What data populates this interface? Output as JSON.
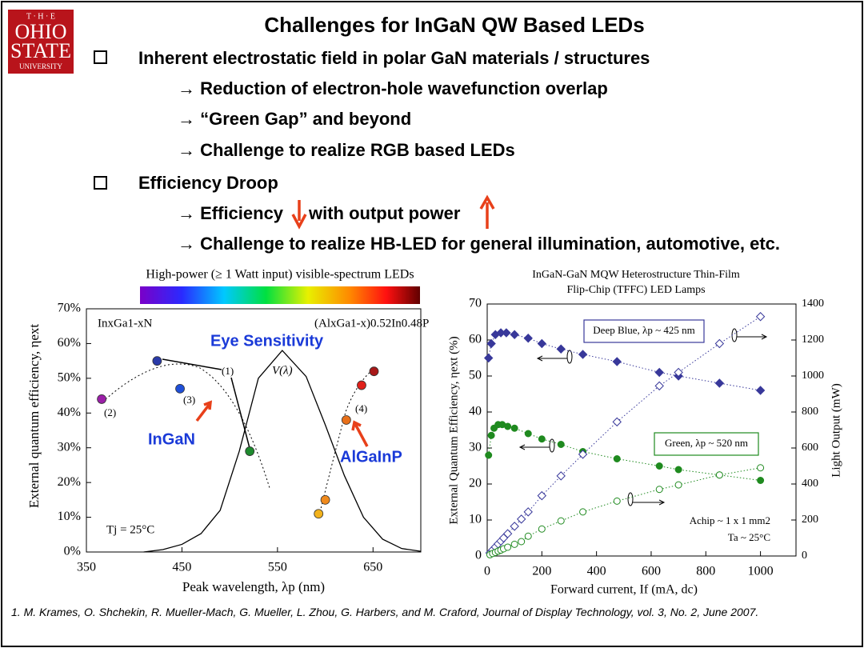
{
  "slide": {
    "logo": [
      "T · H · E",
      "OHIO",
      "STATE",
      "UNIVERSITY"
    ],
    "title": "Challenges for InGaN QW Based LEDs",
    "bullets": [
      {
        "text": "Inherent electrostatic field in polar GaN materials / structures",
        "items": [
          "→ Reduction of electron-hole wavefunction overlap",
          "→ “Green Gap” and beyond",
          "→ Challenge to realize RGB based LEDs"
        ]
      },
      {
        "text": "Efficiency Droop",
        "items": [
          "→ Efficiency",
          "with output power",
          "→ Challenge to realize HB-LED for general illumination, automotive, etc."
        ]
      }
    ],
    "reference": "1. M. Krames, O. Shchekin, R. Mueller-Mach, G. Mueller, L. Zhou, G. Harbers, and M. Craford, Journal of Display Technology, vol. 3, No. 2, June 2007."
  },
  "chart_data": [
    {
      "type": "scatter",
      "title": "High-power (≥ 1 Watt input) visible-spectrum LEDs",
      "x_label": "Peak wavelength, λp (nm)",
      "y_label": "External quantum efficiency, ηext",
      "x": [
        366,
        424,
        448,
        521,
        593,
        600,
        622,
        638,
        651
      ],
      "values": [
        44,
        55,
        47,
        29,
        11,
        15,
        38,
        48,
        52
      ],
      "colors": [
        "#9b1fa8",
        "#2a3aa8",
        "#1f4fd8",
        "#1e8a2e",
        "#f2b21c",
        "#f08a1c",
        "#e8701a",
        "#e0201a",
        "#a81818"
      ],
      "series": [
        {
          "name": "V(λ)",
          "color": "#000000",
          "x": [
            410,
            430,
            450,
            470,
            490,
            510,
            530,
            555,
            580,
            600,
            620,
            640,
            660,
            680,
            700
          ],
          "values": [
            0,
            0.7,
            2.2,
            5.3,
            12,
            29,
            50,
            58,
            50.5,
            36.6,
            22,
            10,
            3.7,
            1,
            0.2
          ]
        }
      ],
      "annotations": [
        "InxGa1-xN",
        "(AlxGa1-x)0.52In0.48P",
        "Eye Sensitivity",
        "InGaN",
        "AlGaInP",
        "(1)",
        "(2)",
        "(3)",
        "(4)",
        "Tj = 25°C"
      ],
      "xlim": [
        350,
        700
      ],
      "xticks": [
        350,
        450,
        550,
        650
      ],
      "ylim": [
        0,
        70
      ],
      "yticks": [
        {
          "value": 0,
          "label": "0%"
        },
        {
          "value": 10,
          "label": "10%"
        },
        {
          "value": 20,
          "label": "20%"
        },
        {
          "value": 30,
          "label": "30%"
        },
        {
          "value": 40,
          "label": "40%"
        },
        {
          "value": 50,
          "label": "50%"
        },
        {
          "value": 60,
          "label": "60%"
        },
        {
          "value": 70,
          "label": "70%"
        }
      ]
    },
    {
      "type": "line",
      "title": [
        "InGaN-GaN MQW Heterostructure Thin-Film",
        "Flip-Chip (TFFC) LED Lamps"
      ],
      "x_label": "Forward current, If (mA, dc)",
      "y_label": "External Quantum Efficiency, ηext (%)",
      "y2_label": "Light Output (mW)",
      "annotations": [
        "Achip ~ 1 x 1 mm2",
        "Ta ~ 25°C"
      ],
      "xlim": [
        0,
        1130
      ],
      "xticks": [
        0,
        200,
        400,
        600,
        800,
        1000
      ],
      "ylim": [
        0,
        70
      ],
      "yticks": [
        0,
        10,
        20,
        30,
        40,
        50,
        60,
        70
      ],
      "y2lim": [
        0,
        1400
      ],
      "y2ticks": [
        0,
        200,
        400,
        600,
        800,
        1000,
        1200,
        1400
      ],
      "series": [
        {
          "name": "Deep Blue, λp ~ 425 nm",
          "color": "#38389a",
          "marker": "diamond",
          "filled": true,
          "x": [
            5,
            15,
            30,
            50,
            70,
            100,
            150,
            200,
            270,
            350,
            475,
            630,
            700,
            850,
            1000
          ],
          "values": [
            55,
            59,
            61.5,
            62,
            62,
            61.5,
            60.5,
            59,
            57.5,
            56,
            54,
            51,
            50,
            48,
            46
          ]
        },
        {
          "name": "Green, λp ~ 520 nm",
          "color": "#1f8a1f",
          "marker": "circle",
          "filled": true,
          "x": [
            5,
            15,
            25,
            40,
            55,
            75,
            100,
            150,
            200,
            270,
            350,
            475,
            630,
            700,
            850,
            1000
          ],
          "values": [
            28,
            33.5,
            35.5,
            36.5,
            36.5,
            36,
            35.5,
            34,
            32.5,
            31,
            29,
            27,
            25,
            24,
            22.5,
            21
          ]
        },
        {
          "axis": "y2",
          "color": "#38389a",
          "marker": "diamond",
          "filled": false,
          "x": [
            10,
            20,
            30,
            40,
            50,
            60,
            75,
            100,
            125,
            150,
            200,
            270,
            350,
            475,
            630,
            700,
            850,
            1000
          ],
          "values": [
            17,
            34,
            50,
            67,
            83,
            100,
            124,
            165,
            205,
            245,
            335,
            445,
            565,
            745,
            945,
            1020,
            1180,
            1330
          ]
        },
        {
          "axis": "y2",
          "color": "#1f8a1f",
          "marker": "circle",
          "filled": false,
          "x": [
            10,
            20,
            30,
            40,
            50,
            60,
            75,
            100,
            125,
            150,
            200,
            270,
            350,
            475,
            630,
            700,
            850,
            1000
          ],
          "values": [
            7,
            14,
            20,
            27,
            33,
            40,
            49,
            65,
            80,
            110,
            150,
            195,
            245,
            305,
            370,
            395,
            450,
            490
          ]
        }
      ]
    }
  ]
}
